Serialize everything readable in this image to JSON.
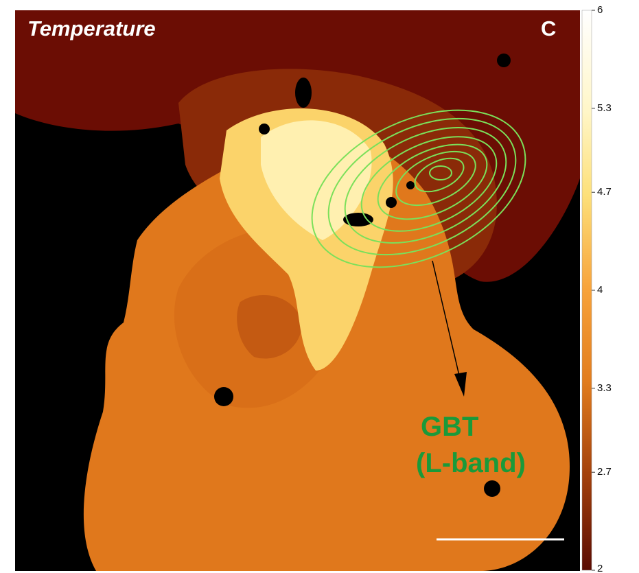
{
  "panel": {
    "title": "Temperature",
    "letter": "C"
  },
  "annotation": {
    "lines": [
      "GBT",
      "(L-band)"
    ]
  },
  "colorbar": {
    "lim": [
      2,
      6
    ],
    "ticks": [
      2,
      2.7,
      3.3,
      4,
      4.7,
      5.3,
      6
    ]
  }
}
